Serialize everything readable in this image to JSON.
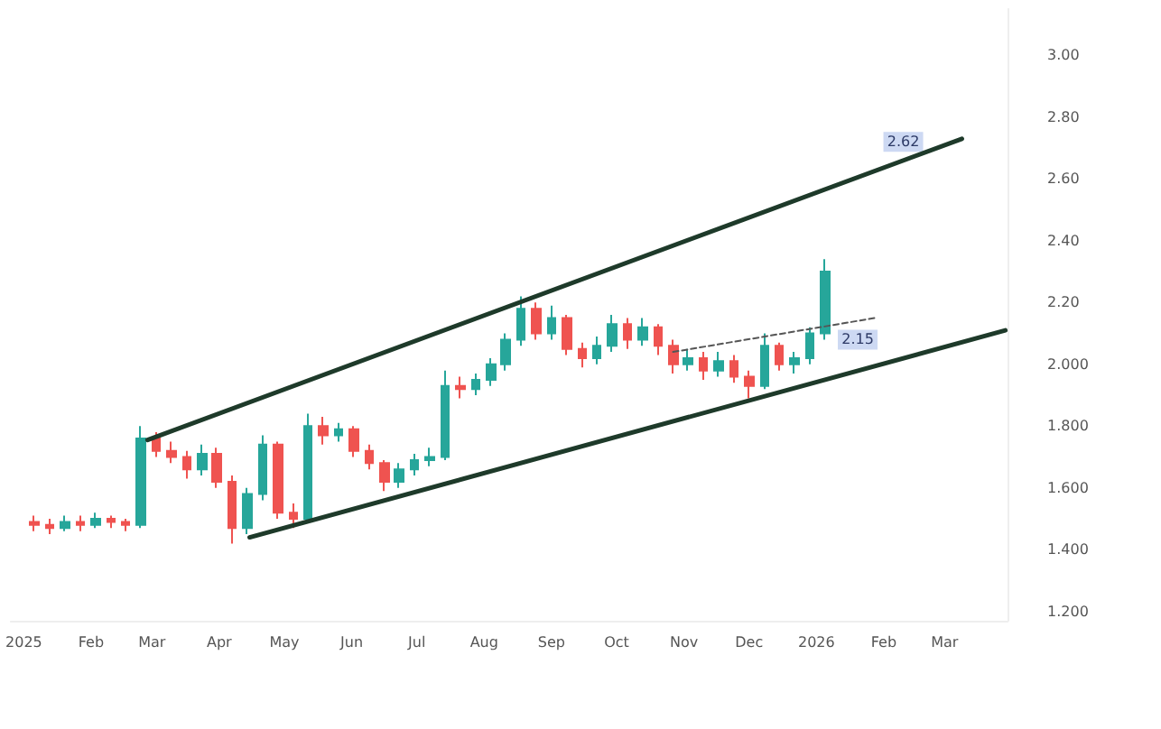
{
  "chart_data": {
    "type": "candlestick",
    "x": [
      "2025-01-06",
      "2025-01-13",
      "2025-01-20",
      "2025-01-27",
      "2025-02-03",
      "2025-02-10",
      "2025-02-17",
      "2025-02-24",
      "2025-03-03",
      "2025-03-10",
      "2025-03-17",
      "2025-03-24",
      "2025-03-31",
      "2025-04-07",
      "2025-04-14",
      "2025-04-21",
      "2025-04-28",
      "2025-05-05",
      "2025-05-12",
      "2025-05-19",
      "2025-05-26",
      "2025-06-02",
      "2025-06-09",
      "2025-06-16",
      "2025-06-23",
      "2025-06-30",
      "2025-07-07",
      "2025-07-14",
      "2025-07-21",
      "2025-07-28",
      "2025-08-04",
      "2025-08-11",
      "2025-08-18",
      "2025-08-25",
      "2025-09-01",
      "2025-09-08",
      "2025-09-15",
      "2025-09-22",
      "2025-09-29",
      "2025-10-06",
      "2025-10-13",
      "2025-10-20",
      "2025-10-27",
      "2025-11-03",
      "2025-11-10",
      "2025-11-17",
      "2025-11-24",
      "2025-12-01",
      "2025-12-08",
      "2025-12-15",
      "2025-12-22",
      "2025-12-29",
      "2026-01-05"
    ],
    "ohlc": [
      [
        1.49,
        1.51,
        1.46,
        1.48
      ],
      [
        1.48,
        1.5,
        1.45,
        1.47
      ],
      [
        1.47,
        1.51,
        1.46,
        1.49
      ],
      [
        1.49,
        1.51,
        1.46,
        1.48
      ],
      [
        1.48,
        1.52,
        1.47,
        1.5
      ],
      [
        1.5,
        1.51,
        1.47,
        1.49
      ],
      [
        1.49,
        1.5,
        1.46,
        1.48
      ],
      [
        1.48,
        1.8,
        1.47,
        1.76
      ],
      [
        1.76,
        1.78,
        1.7,
        1.72
      ],
      [
        1.72,
        1.75,
        1.68,
        1.7
      ],
      [
        1.7,
        1.72,
        1.63,
        1.66
      ],
      [
        1.66,
        1.74,
        1.64,
        1.71
      ],
      [
        1.71,
        1.73,
        1.6,
        1.62
      ],
      [
        1.62,
        1.64,
        1.42,
        1.47
      ],
      [
        1.47,
        1.6,
        1.45,
        1.58
      ],
      [
        1.58,
        1.77,
        1.56,
        1.74
      ],
      [
        1.74,
        1.75,
        1.5,
        1.52
      ],
      [
        1.52,
        1.55,
        1.47,
        1.5
      ],
      [
        1.5,
        1.84,
        1.49,
        1.8
      ],
      [
        1.8,
        1.83,
        1.74,
        1.77
      ],
      [
        1.77,
        1.81,
        1.75,
        1.79
      ],
      [
        1.79,
        1.8,
        1.7,
        1.72
      ],
      [
        1.72,
        1.74,
        1.66,
        1.68
      ],
      [
        1.68,
        1.69,
        1.59,
        1.62
      ],
      [
        1.62,
        1.68,
        1.6,
        1.66
      ],
      [
        1.66,
        1.71,
        1.64,
        1.69
      ],
      [
        1.69,
        1.73,
        1.67,
        1.7
      ],
      [
        1.7,
        1.98,
        1.69,
        1.93
      ],
      [
        1.93,
        1.96,
        1.89,
        1.92
      ],
      [
        1.92,
        1.97,
        1.9,
        1.95
      ],
      [
        1.95,
        2.02,
        1.93,
        2.0
      ],
      [
        2.0,
        2.1,
        1.98,
        2.08
      ],
      [
        2.08,
        2.22,
        2.06,
        2.18
      ],
      [
        2.18,
        2.2,
        2.08,
        2.1
      ],
      [
        2.1,
        2.19,
        2.08,
        2.15
      ],
      [
        2.15,
        2.16,
        2.03,
        2.05
      ],
      [
        2.05,
        2.07,
        1.99,
        2.02
      ],
      [
        2.02,
        2.09,
        2.0,
        2.06
      ],
      [
        2.06,
        2.16,
        2.04,
        2.13
      ],
      [
        2.13,
        2.15,
        2.05,
        2.08
      ],
      [
        2.08,
        2.15,
        2.06,
        2.12
      ],
      [
        2.12,
        2.13,
        2.03,
        2.06
      ],
      [
        2.06,
        2.08,
        1.97,
        2.0
      ],
      [
        2.0,
        2.05,
        1.98,
        2.02
      ],
      [
        2.02,
        2.04,
        1.95,
        1.98
      ],
      [
        1.98,
        2.04,
        1.96,
        2.01
      ],
      [
        2.01,
        2.03,
        1.94,
        1.96
      ],
      [
        1.96,
        1.98,
        1.89,
        1.93
      ],
      [
        1.93,
        2.1,
        1.92,
        2.06
      ],
      [
        2.06,
        2.07,
        1.98,
        2.0
      ],
      [
        2.0,
        2.04,
        1.97,
        2.02
      ],
      [
        2.02,
        2.12,
        2.0,
        2.1
      ],
      [
        2.1,
        2.34,
        2.08,
        2.3
      ]
    ],
    "series": [
      {
        "type": "line",
        "color": "#1e3a2a",
        "x": [
          "2025-02-27",
          "2026-03-09"
        ],
        "values": [
          1.755,
          2.73
        ]
      },
      {
        "type": "line",
        "color": "#1e3a2a",
        "x": [
          "2025-04-15",
          "2026-03-29"
        ],
        "values": [
          1.44,
          2.11
        ]
      },
      {
        "type": "line",
        "color": "#555555",
        "line_style": "dashed",
        "x": [
          "2025-10-27",
          "2026-01-28"
        ],
        "values": [
          2.04,
          2.15
        ]
      }
    ],
    "annotations": [
      {
        "text": "2.62",
        "x": "2026-02-10",
        "y": 2.72
      },
      {
        "text": "2.15",
        "x": "2026-01-20",
        "y": 2.08
      }
    ],
    "xlim": [
      "2024-12-26",
      "2026-03-30"
    ],
    "xticks": [
      {
        "value": "2025-01-01",
        "label": "2025"
      },
      {
        "value": "2025-02-01",
        "label": "Feb"
      },
      {
        "value": "2025-03-01",
        "label": "Mar"
      },
      {
        "value": "2025-04-01",
        "label": "Apr"
      },
      {
        "value": "2025-05-01",
        "label": "May"
      },
      {
        "value": "2025-06-01",
        "label": "Jun"
      },
      {
        "value": "2025-07-01",
        "label": "Jul"
      },
      {
        "value": "2025-08-01",
        "label": "Aug"
      },
      {
        "value": "2025-09-01",
        "label": "Sep"
      },
      {
        "value": "2025-10-01",
        "label": "Oct"
      },
      {
        "value": "2025-11-01",
        "label": "Nov"
      },
      {
        "value": "2025-12-01",
        "label": "Dec"
      },
      {
        "value": "2026-01-01",
        "label": "2026"
      },
      {
        "value": "2026-02-01",
        "label": "Feb"
      },
      {
        "value": "2026-03-01",
        "label": "Mar"
      }
    ],
    "ylim": [
      1.17,
      3.15
    ],
    "yticks": [
      {
        "value": 1.2,
        "label": "1.200"
      },
      {
        "value": 1.4,
        "label": "1.400"
      },
      {
        "value": 1.6,
        "label": "1.600"
      },
      {
        "value": 1.8,
        "label": "1.800"
      },
      {
        "value": 2.0,
        "label": "2.000"
      },
      {
        "value": 2.2,
        "label": "2.20"
      },
      {
        "value": 2.4,
        "label": "2.40"
      },
      {
        "value": 2.6,
        "label": "2.60"
      },
      {
        "value": 2.8,
        "label": "2.80"
      },
      {
        "value": 3.0,
        "label": "3.00"
      }
    ],
    "grid": false
  }
}
